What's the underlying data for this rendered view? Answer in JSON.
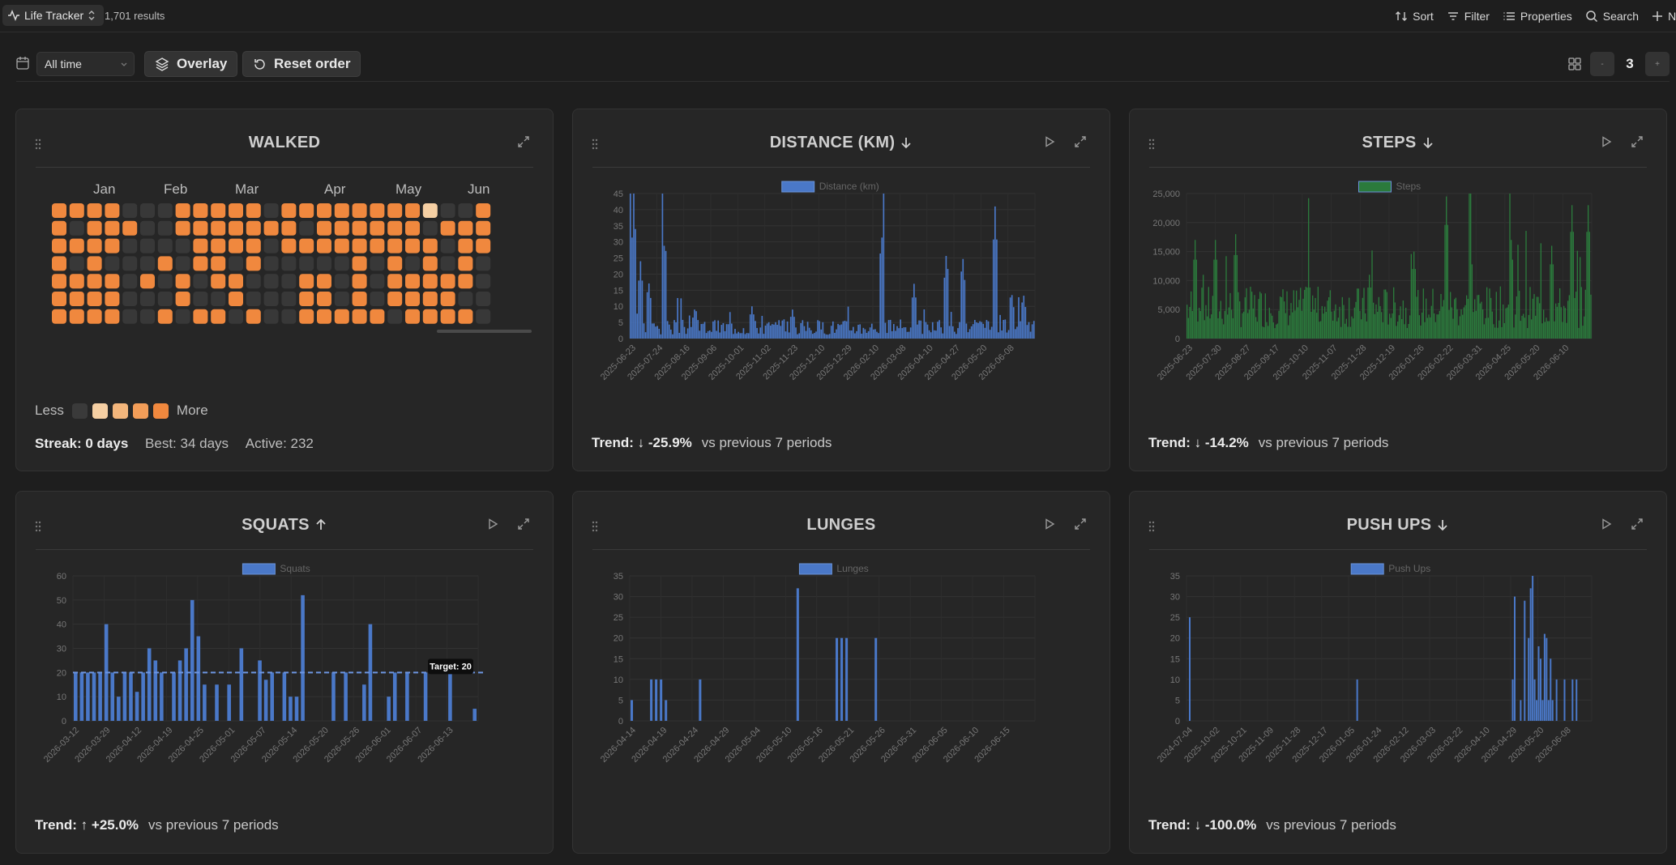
{
  "topbar": {
    "view_name": "Life Tracker",
    "results": "1,701 results",
    "actions": {
      "sort": "Sort",
      "filter": "Filter",
      "properties": "Properties",
      "search": "Search",
      "new": "Ne"
    }
  },
  "filters": {
    "range": "All time",
    "overlay": "Overlay",
    "reset": "Reset order",
    "page": "3"
  },
  "colors": {
    "accent_orange": "#f0883e",
    "bar_blue": "#4a78c8",
    "bar_green": "#2b7a3c",
    "empty_cell": "#383838"
  },
  "walked": {
    "title": "WALKED",
    "months": [
      "Jan",
      "Feb",
      "Mar",
      "Apr",
      "May",
      "Jun"
    ],
    "rows": [
      "1111000111110111111111001",
      "1011100111111101111110111",
      "1111000011110111111111011",
      "1010001011010000010101010",
      "1111010101100011010111110",
      "1111000100100011010111100",
      "1111001011010011111011110"
    ],
    "highlight_cell": {
      "row": 0,
      "col": 21
    },
    "legend_less": "Less",
    "legend_more": "More",
    "legend_colors": [
      "#3a3a3a",
      "#f5cfa3",
      "#f3b67c",
      "#f29d58",
      "#f0883e"
    ],
    "streak_label": "Streak: 0 days",
    "best": "Best: 34 days",
    "active": "Active: 232"
  },
  "cards": [
    {
      "title": "DISTANCE (KM)",
      "arrow": "down",
      "trend_label": "Trend:",
      "trend_value": "-25.9%",
      "trend_vs": "vs previous 7 periods",
      "chart_data": {
        "type": "bar",
        "series": [
          {
            "name": "Distance (km)",
            "color": "#4a78c8"
          }
        ],
        "ylim": [
          0,
          45
        ],
        "yticks": [
          "0",
          "5",
          "10",
          "15",
          "20",
          "25",
          "30",
          "35",
          "40",
          "45"
        ],
        "xticks": [
          "2025-06-23",
          "2025-07-24",
          "2025-08-16",
          "2025-09-06",
          "2025-10-01",
          "2025-11-02",
          "2025-11-23",
          "2025-12-10",
          "2025-12-29",
          "2026-02-10",
          "2026-03-08",
          "2026-04-10",
          "2026-04-27",
          "2026-05-20",
          "2026-06-08"
        ],
        "peaks": [
          [
            0.005,
            33
          ],
          [
            0.01,
            40
          ],
          [
            0.025,
            24
          ],
          [
            0.045,
            18
          ],
          [
            0.085,
            32
          ],
          [
            0.16,
            10
          ],
          [
            0.3,
            10
          ],
          [
            0.4,
            9
          ],
          [
            0.62,
            33
          ],
          [
            0.7,
            17
          ],
          [
            0.78,
            27
          ],
          [
            0.82,
            26
          ],
          [
            0.9,
            41
          ],
          [
            0.94,
            15
          ],
          [
            0.97,
            14
          ]
        ],
        "base_level": 4,
        "count": 240,
        "seed": 3
      }
    },
    {
      "title": "STEPS",
      "arrow": "down",
      "trend_label": "Trend:",
      "trend_value": "-14.2%",
      "trend_vs": "vs previous 7 periods",
      "chart_data": {
        "type": "bar",
        "series": [
          {
            "name": "Steps",
            "color": "#2b7a3c"
          }
        ],
        "ylim": [
          0,
          25000
        ],
        "yticks": [
          "0",
          "5,000",
          "10,000",
          "15,000",
          "20,000",
          "25,000"
        ],
        "xticks": [
          "2025-06-23",
          "2025-07-30",
          "2025-08-27",
          "2025-09-17",
          "2025-10-10",
          "2025-11-07",
          "2025-11-28",
          "2025-12-19",
          "2026-01-26",
          "2026-02-22",
          "2026-03-31",
          "2026-04-25",
          "2026-05-20",
          "2026-06-10"
        ],
        "peaks": [
          [
            0.02,
            17000
          ],
          [
            0.07,
            17000
          ],
          [
            0.12,
            18000
          ],
          [
            0.3,
            11000
          ],
          [
            0.45,
            11000
          ],
          [
            0.56,
            15000
          ],
          [
            0.64,
            24500
          ],
          [
            0.7,
            16000
          ],
          [
            0.8,
            17000
          ],
          [
            0.9,
            16000
          ],
          [
            0.95,
            23000
          ],
          [
            0.99,
            23000
          ]
        ],
        "base_level": 6000,
        "count": 300,
        "seed": 7
      }
    },
    {
      "title": "SQUATS",
      "arrow": "up",
      "trend_label": "Trend:",
      "trend_value": "+25.0%",
      "trend_vs": "vs previous 7 periods",
      "chart_data": {
        "type": "bar",
        "series": [
          {
            "name": "Squats",
            "color": "#4a78c8"
          }
        ],
        "ylim": [
          0,
          60
        ],
        "yticks": [
          "0",
          "10",
          "20",
          "30",
          "40",
          "50",
          "60"
        ],
        "xticks": [
          "2026-03-12",
          "2026-03-29",
          "2026-04-12",
          "2026-04-19",
          "2026-04-25",
          "2026-05-01",
          "2026-05-07",
          "2026-05-14",
          "2026-05-20",
          "2026-05-26",
          "2026-06-01",
          "2026-06-07",
          "2026-06-13"
        ],
        "values": [
          20,
          20,
          20,
          20,
          20,
          40,
          20,
          10,
          20,
          20,
          12,
          20,
          30,
          25,
          20,
          0,
          20,
          25,
          30,
          50,
          35,
          15,
          0,
          15,
          0,
          15,
          0,
          30,
          0,
          0,
          25,
          17,
          20,
          0,
          20,
          10,
          10,
          52,
          0,
          0,
          0,
          0,
          20,
          0,
          20,
          0,
          0,
          15,
          40,
          0,
          0,
          10,
          20,
          0,
          20,
          0,
          0,
          20,
          0,
          0,
          0,
          20,
          0,
          0,
          0,
          5
        ],
        "target": 20,
        "target_label": "Target: 20"
      }
    },
    {
      "title": "LUNGES",
      "arrow": "",
      "trend_label": "",
      "trend_value": "",
      "trend_vs": "",
      "chart_data": {
        "type": "bar",
        "series": [
          {
            "name": "Lunges",
            "color": "#4a78c8"
          }
        ],
        "ylim": [
          0,
          35
        ],
        "yticks": [
          "0",
          "5",
          "10",
          "15",
          "20",
          "25",
          "30",
          "35"
        ],
        "xticks": [
          "2026-04-14",
          "2026-04-19",
          "2026-04-24",
          "2026-04-29",
          "2026-05-04",
          "2026-05-10",
          "2026-05-16",
          "2026-05-21",
          "2026-05-26",
          "2026-05-31",
          "2026-06-05",
          "2026-06-10",
          "2026-06-15"
        ],
        "values": [
          5,
          0,
          0,
          0,
          10,
          10,
          10,
          5,
          0,
          0,
          0,
          0,
          0,
          0,
          10,
          0,
          0,
          0,
          0,
          0,
          0,
          0,
          0,
          0,
          0,
          0,
          0,
          0,
          0,
          0,
          0,
          0,
          0,
          0,
          32,
          0,
          0,
          0,
          0,
          0,
          0,
          0,
          20,
          20,
          20,
          0,
          0,
          0,
          0,
          0,
          20,
          0,
          0,
          0,
          0,
          0,
          0,
          0,
          0,
          0,
          0,
          0,
          0,
          0,
          0,
          0,
          0,
          0,
          0,
          0,
          0,
          0,
          0,
          0,
          0,
          0,
          0,
          0,
          0,
          0,
          0,
          0,
          0
        ]
      }
    },
    {
      "title": "PUSH UPS",
      "arrow": "down",
      "trend_label": "Trend:",
      "trend_value": "-100.0%",
      "trend_vs": "vs previous 7 periods",
      "chart_data": {
        "type": "bar",
        "series": [
          {
            "name": "Push Ups",
            "color": "#4a78c8"
          }
        ],
        "ylim": [
          0,
          35
        ],
        "yticks": [
          "0",
          "5",
          "10",
          "15",
          "20",
          "25",
          "30",
          "35"
        ],
        "xticks": [
          "2024-07-04",
          "2025-10-02",
          "2025-10-21",
          "2025-11-09",
          "2025-11-28",
          "2025-12-17",
          "2026-01-05",
          "2026-01-24",
          "2026-02-12",
          "2026-03-03",
          "2026-03-22",
          "2026-04-10",
          "2026-04-29",
          "2026-05-20",
          "2026-06-08"
        ],
        "points": [
          [
            0.0,
            25
          ],
          [
            0.42,
            10
          ],
          [
            0.81,
            10
          ],
          [
            0.815,
            30
          ],
          [
            0.83,
            5
          ],
          [
            0.84,
            29
          ],
          [
            0.85,
            20
          ],
          [
            0.855,
            32
          ],
          [
            0.86,
            35
          ],
          [
            0.865,
            10
          ],
          [
            0.87,
            5
          ],
          [
            0.875,
            18
          ],
          [
            0.88,
            15
          ],
          [
            0.885,
            5
          ],
          [
            0.89,
            21
          ],
          [
            0.895,
            20
          ],
          [
            0.9,
            5
          ],
          [
            0.905,
            15
          ],
          [
            0.91,
            5
          ],
          [
            0.92,
            10
          ],
          [
            0.94,
            10
          ],
          [
            0.96,
            10
          ],
          [
            0.97,
            10
          ]
        ]
      }
    }
  ]
}
